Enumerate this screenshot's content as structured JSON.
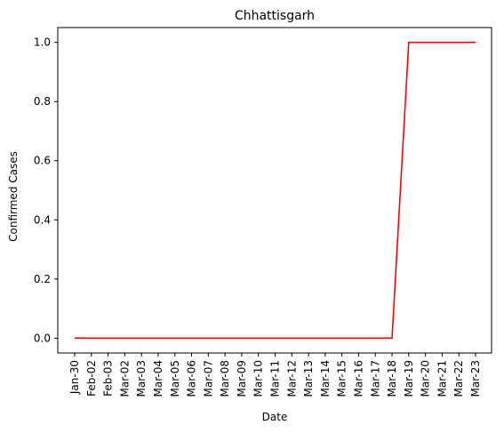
{
  "chart_data": {
    "type": "line",
    "title": "Chhattisgarh",
    "xlabel": "Date",
    "ylabel": "Confirmed Cases",
    "categories": [
      "Jan-30",
      "Feb-02",
      "Feb-03",
      "Mar-02",
      "Mar-03",
      "Mar-04",
      "Mar-05",
      "Mar-06",
      "Mar-07",
      "Mar-08",
      "Mar-09",
      "Mar-10",
      "Mar-11",
      "Mar-12",
      "Mar-13",
      "Mar-14",
      "Mar-15",
      "Mar-16",
      "Mar-17",
      "Mar-18",
      "Mar-19",
      "Mar-20",
      "Mar-21",
      "Mar-22",
      "Mar-23"
    ],
    "series": [
      {
        "color": "#ff0000",
        "values": [
          0,
          0,
          0,
          0,
          0,
          0,
          0,
          0,
          0,
          0,
          0,
          0,
          0,
          0,
          0,
          0,
          0,
          0,
          0,
          0,
          1,
          1,
          1,
          1,
          1
        ]
      }
    ],
    "ylim": [
      -0.05,
      1.05
    ],
    "yticks": [
      "0.0",
      "0.2",
      "0.4",
      "0.6",
      "0.8",
      "1.0"
    ],
    "grid": false,
    "legend": "none"
  }
}
